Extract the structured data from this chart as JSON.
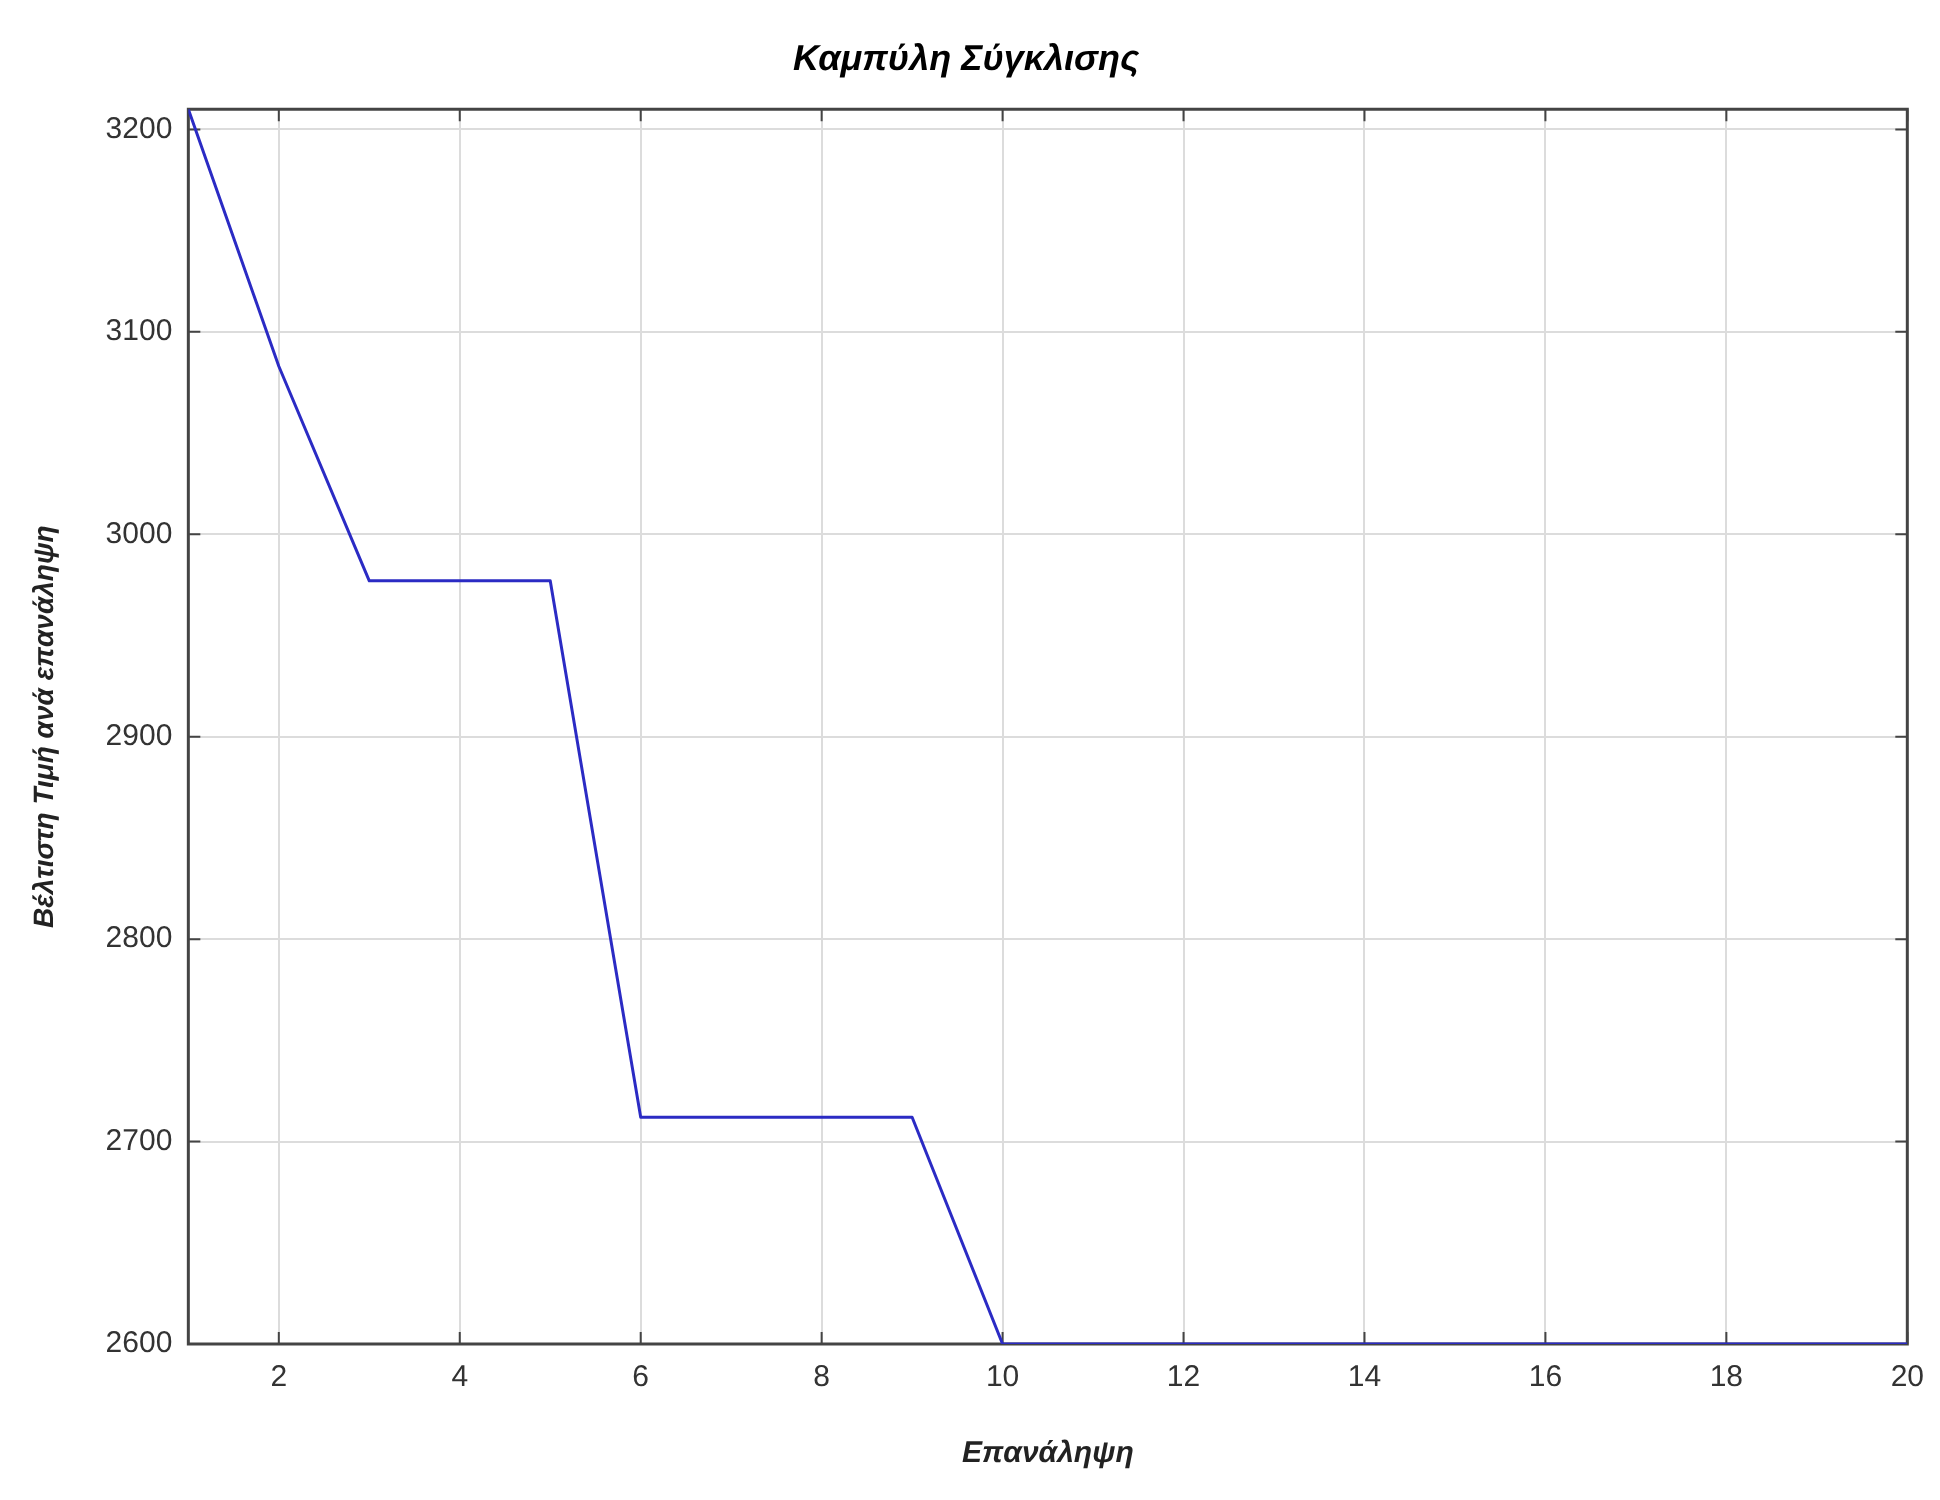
{
  "chart_data": {
    "type": "line",
    "title": "Καμπύλη Σύγκλισης",
    "xlabel": "Επανάληψη",
    "ylabel": "Βέλτιστη Τιμή ανά επανάληψη",
    "x": [
      1,
      2,
      3,
      4,
      5,
      6,
      7,
      8,
      9,
      10,
      11,
      12,
      13,
      14,
      15,
      16,
      17,
      18,
      19,
      20
    ],
    "series": [
      {
        "color": "#2b2bc4",
        "values": [
          3210,
          3083,
          2977,
          2977,
          2977,
          2712,
          2712,
          2712,
          2712,
          2600,
          2600,
          2600,
          2600,
          2600,
          2600,
          2600,
          2600,
          2600,
          2600,
          2600
        ]
      }
    ],
    "xlim": [
      1,
      20
    ],
    "xticks": [
      2,
      4,
      6,
      8,
      10,
      12,
      14,
      16,
      18,
      20
    ],
    "ylim": [
      2600,
      3210
    ],
    "yticks": [
      2600,
      2700,
      2800,
      2900,
      3000,
      3100,
      3200
    ],
    "grid": true,
    "legend": false,
    "marker": "none",
    "line_style": "solid"
  }
}
